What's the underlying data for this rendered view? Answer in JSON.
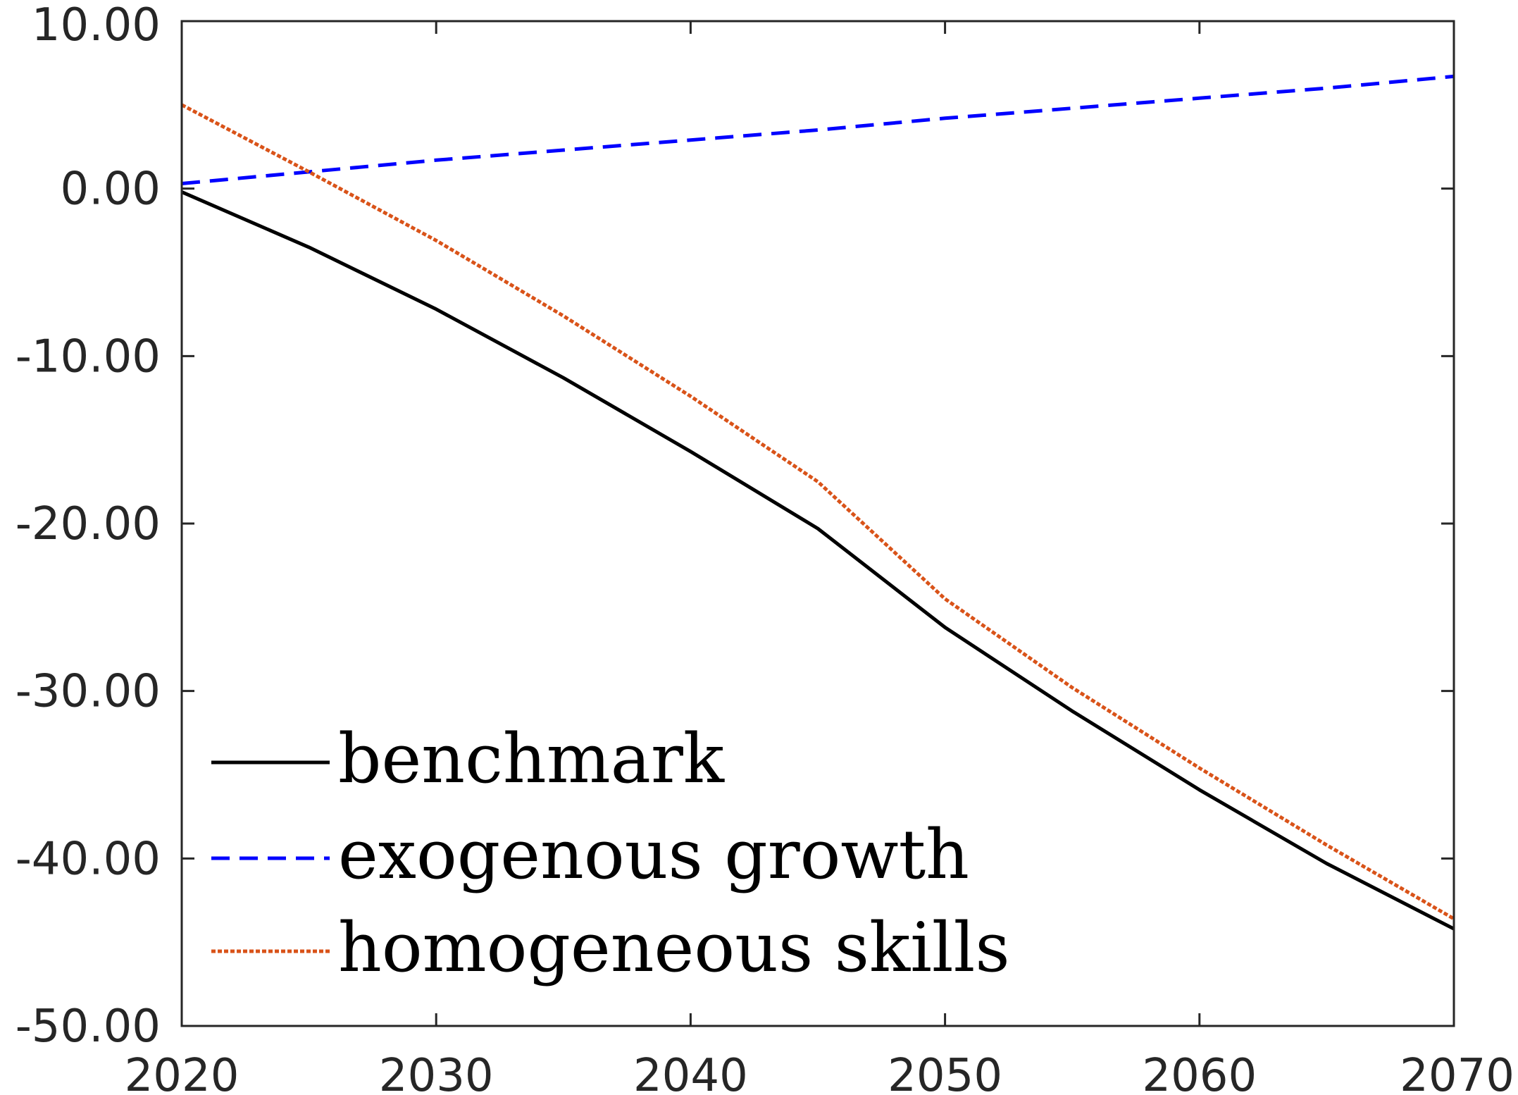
{
  "chart_data": {
    "type": "line",
    "title": "",
    "xlabel": "",
    "ylabel": "",
    "xlim": [
      2020,
      2070
    ],
    "ylim": [
      -50,
      10
    ],
    "xticks": [
      2020,
      2030,
      2040,
      2050,
      2060,
      2070
    ],
    "xtick_labels": [
      "2020",
      "2030",
      "2040",
      "2050",
      "2060",
      "2070"
    ],
    "yticks": [
      10,
      0,
      -10,
      -20,
      -30,
      -40,
      -50
    ],
    "ytick_labels": [
      "10.00",
      "0.00",
      "-10.00",
      "-20.00",
      "-30.00",
      "-40.00",
      "-50.00"
    ],
    "grid": false,
    "legend_position": "bottom-left",
    "x": [
      2020,
      2025,
      2030,
      2035,
      2040,
      2045,
      2050,
      2055,
      2060,
      2065,
      2070
    ],
    "series": [
      {
        "name": "benchmark",
        "color": "#000000",
        "style": "solid",
        "values": [
          -0.2,
          -3.5,
          -7.2,
          -11.3,
          -15.7,
          -20.3,
          -26.2,
          -31.2,
          -35.9,
          -40.3,
          -44.2
        ]
      },
      {
        "name": "exogenous growth",
        "color": "#0000ff",
        "style": "dashed",
        "values": [
          0.3,
          1.0,
          1.7,
          2.3,
          2.9,
          3.5,
          4.2,
          4.8,
          5.4,
          6.0,
          6.7
        ]
      },
      {
        "name": "homogeneous skills",
        "color": "#d95319",
        "style": "dotted",
        "values": [
          5.0,
          1.0,
          -3.1,
          -7.6,
          -12.4,
          -17.5,
          -24.5,
          -29.8,
          -34.6,
          -39.2,
          -43.6
        ]
      }
    ]
  }
}
